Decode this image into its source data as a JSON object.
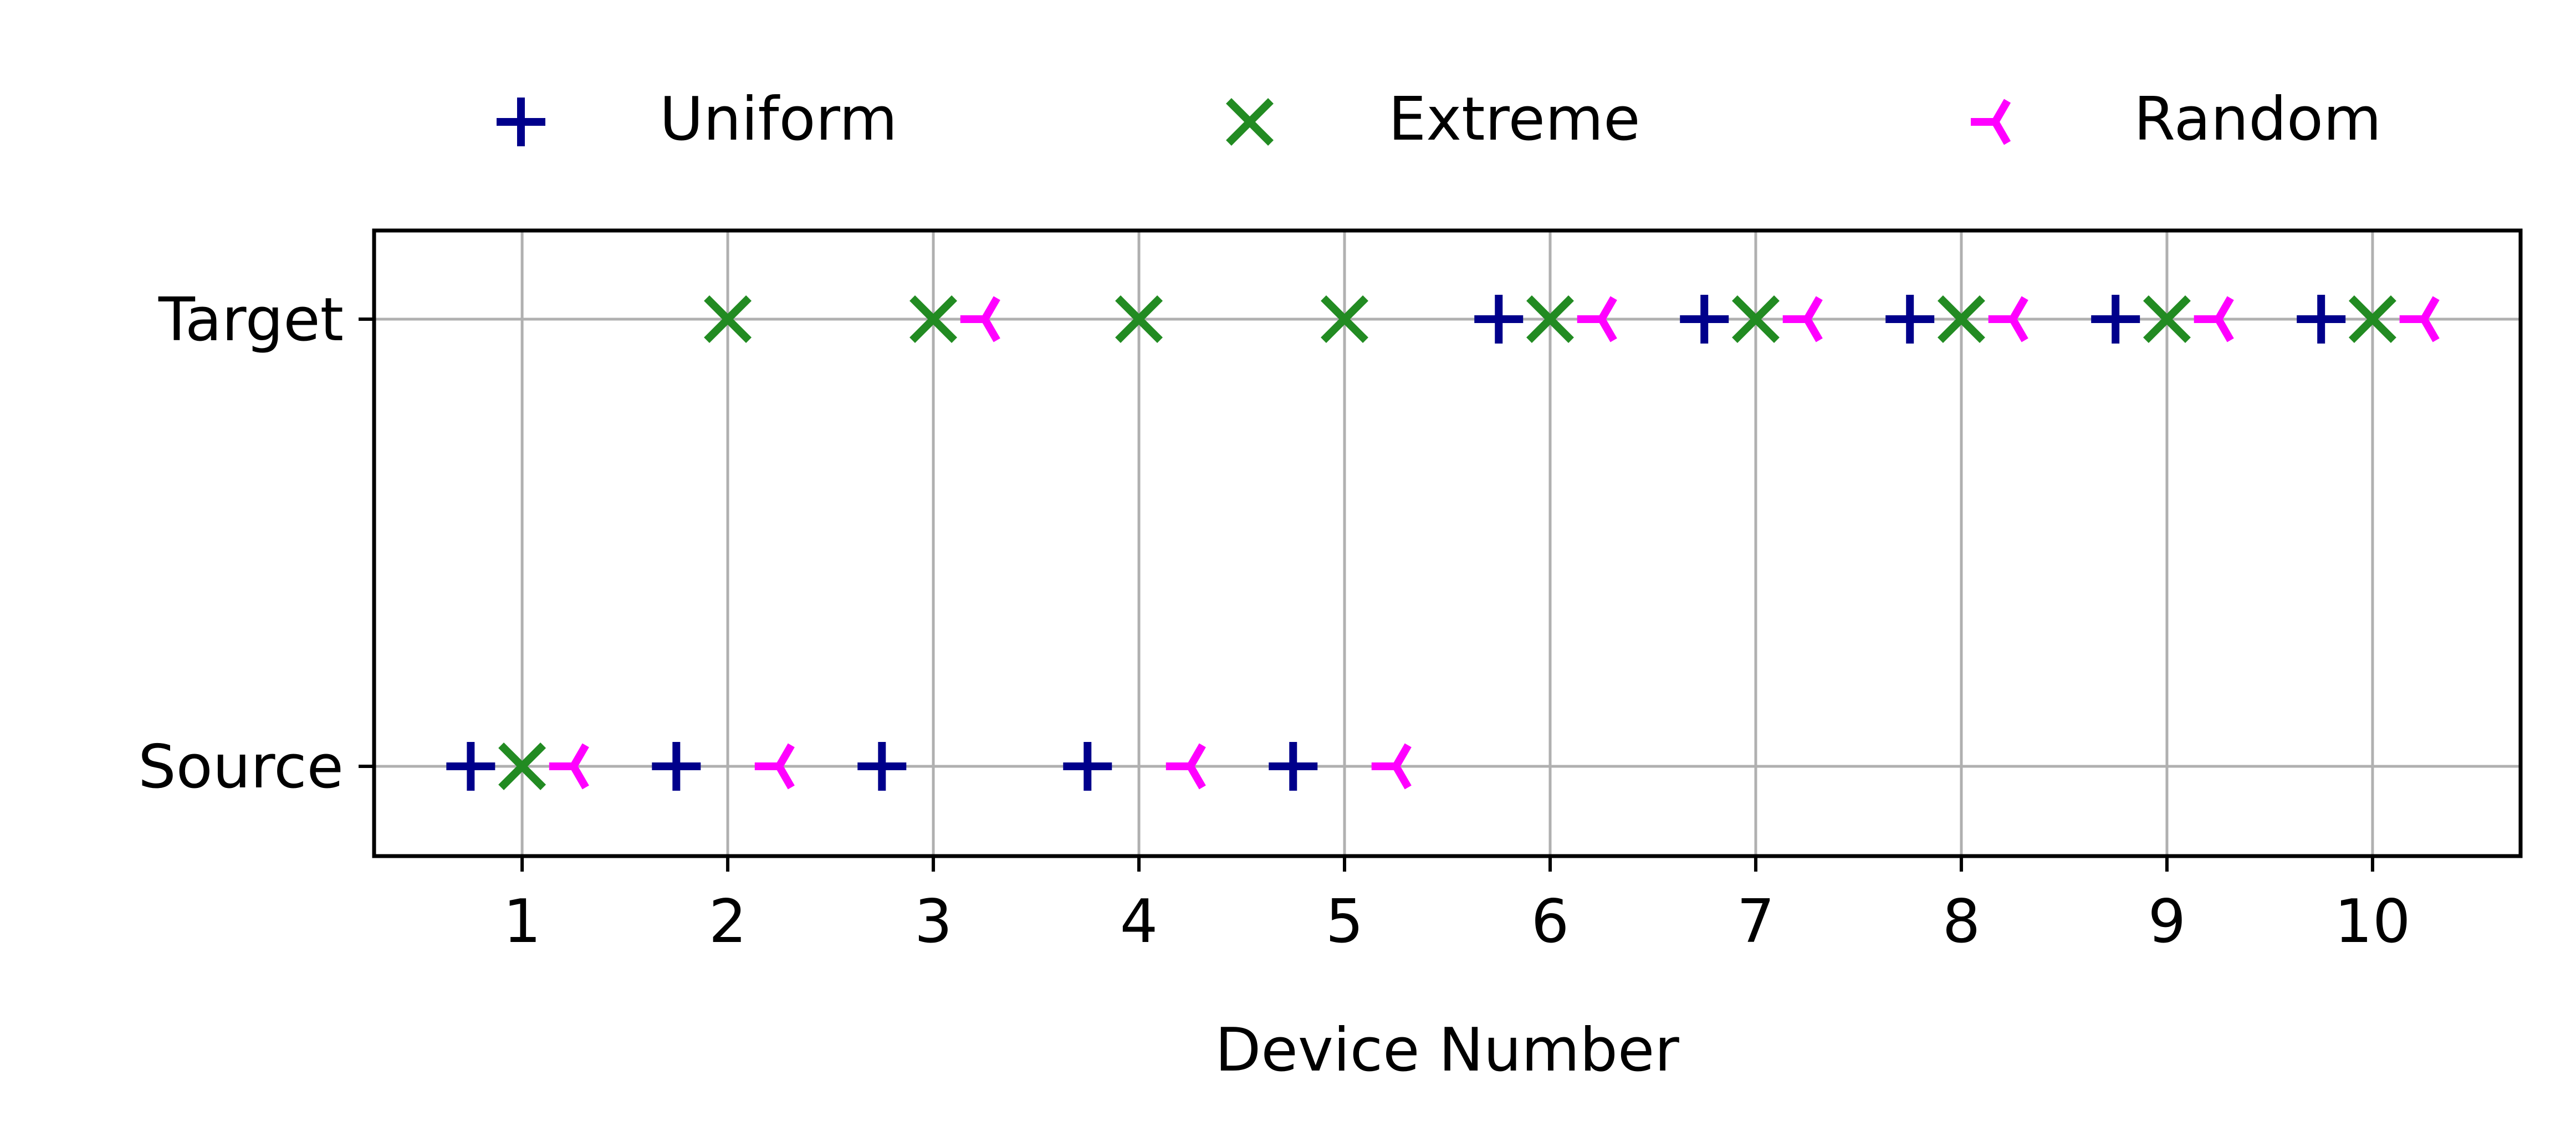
{
  "chart_data": {
    "type": "scatter",
    "title": "",
    "xlabel": "Device Number",
    "ylabel": "",
    "xlim": [
      0.28,
      10.72
    ],
    "x_ticks": [
      1,
      2,
      3,
      4,
      5,
      6,
      7,
      8,
      9,
      10
    ],
    "x_tick_labels": [
      "1",
      "2",
      "3",
      "4",
      "5",
      "6",
      "7",
      "8",
      "9",
      "10"
    ],
    "y_categories": [
      "Source",
      "Target"
    ],
    "grid": true,
    "legend_position": "top",
    "series": [
      {
        "name": "Uniform",
        "marker": "plus",
        "color": "#00008b",
        "points": [
          {
            "x": 0.75,
            "y": "Source"
          },
          {
            "x": 1.75,
            "y": "Source"
          },
          {
            "x": 2.75,
            "y": "Source"
          },
          {
            "x": 3.75,
            "y": "Source"
          },
          {
            "x": 4.75,
            "y": "Source"
          },
          {
            "x": 5.75,
            "y": "Target"
          },
          {
            "x": 6.75,
            "y": "Target"
          },
          {
            "x": 7.75,
            "y": "Target"
          },
          {
            "x": 8.75,
            "y": "Target"
          },
          {
            "x": 9.75,
            "y": "Target"
          }
        ]
      },
      {
        "name": "Extreme",
        "marker": "x",
        "color": "#228b22",
        "points": [
          {
            "x": 1,
            "y": "Source"
          },
          {
            "x": 2,
            "y": "Target"
          },
          {
            "x": 3,
            "y": "Target"
          },
          {
            "x": 4,
            "y": "Target"
          },
          {
            "x": 5,
            "y": "Target"
          },
          {
            "x": 6,
            "y": "Target"
          },
          {
            "x": 7,
            "y": "Target"
          },
          {
            "x": 8,
            "y": "Target"
          },
          {
            "x": 9,
            "y": "Target"
          },
          {
            "x": 10,
            "y": "Target"
          }
        ]
      },
      {
        "name": "Random",
        "marker": "tri_left",
        "color": "#ff00ff",
        "points": [
          {
            "x": 1.25,
            "y": "Source"
          },
          {
            "x": 2.25,
            "y": "Source"
          },
          {
            "x": 4.25,
            "y": "Source"
          },
          {
            "x": 5.25,
            "y": "Source"
          },
          {
            "x": 3.25,
            "y": "Target"
          },
          {
            "x": 6.25,
            "y": "Target"
          },
          {
            "x": 7.25,
            "y": "Target"
          },
          {
            "x": 8.25,
            "y": "Target"
          },
          {
            "x": 9.25,
            "y": "Target"
          },
          {
            "x": 10.25,
            "y": "Target"
          }
        ]
      }
    ]
  }
}
